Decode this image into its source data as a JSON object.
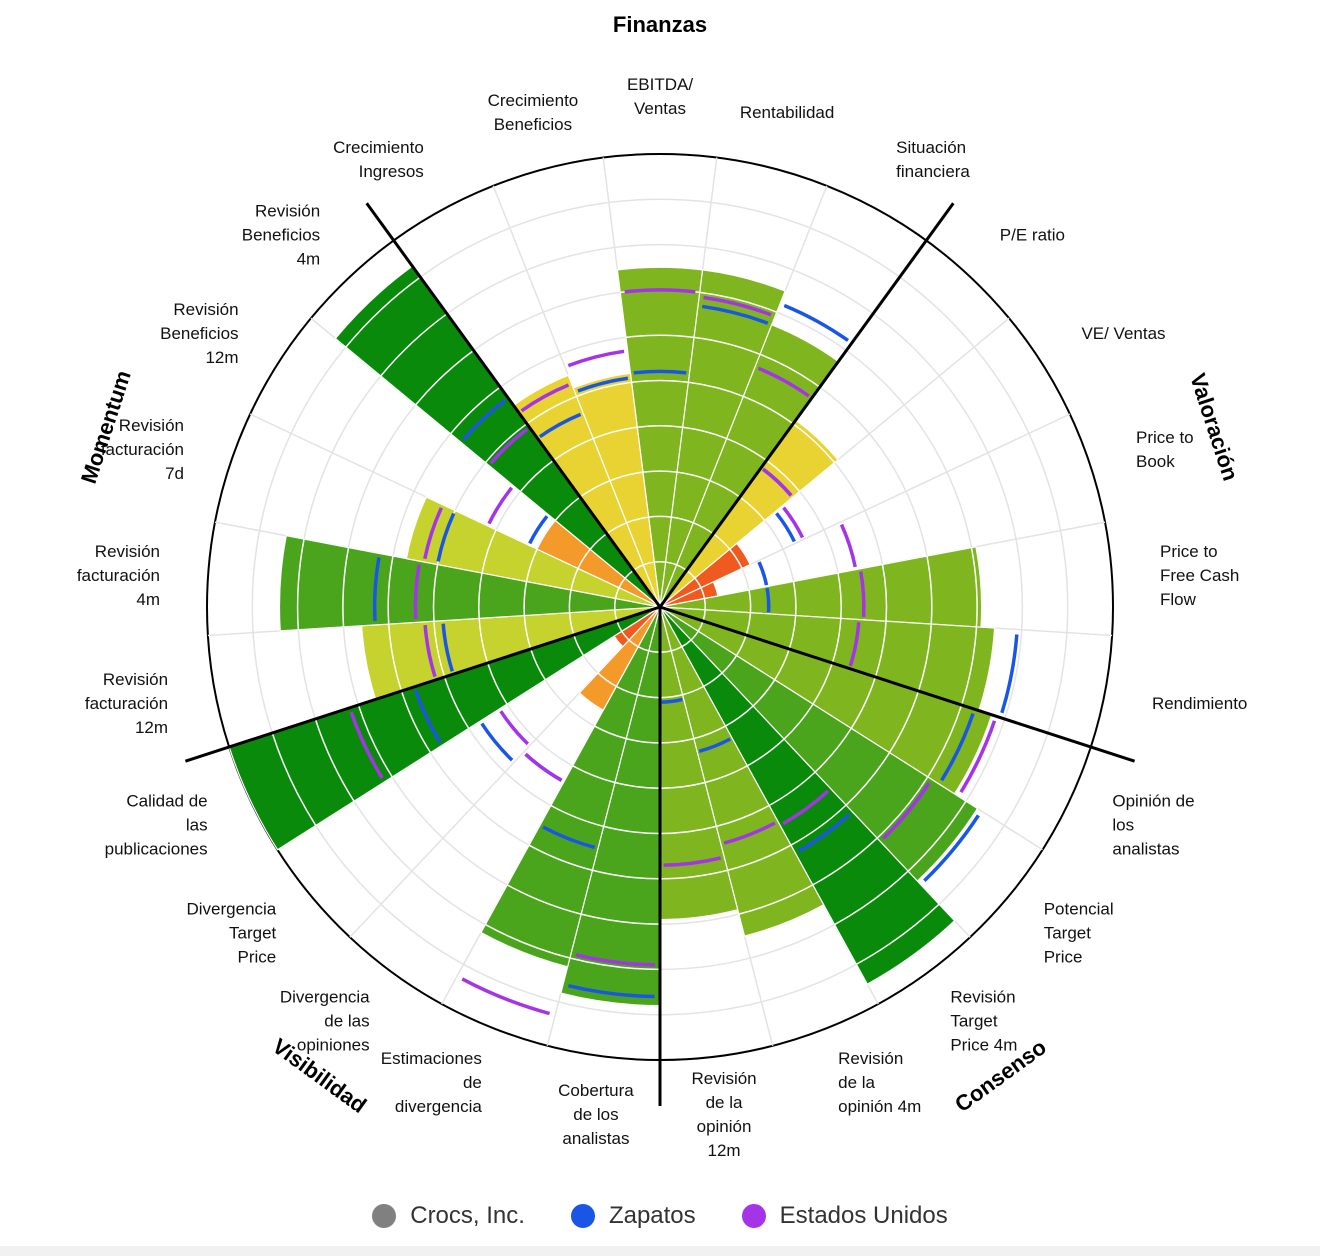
{
  "chart_data": {
    "type": "polar-bar",
    "scale": {
      "min": 0,
      "max": 10,
      "rings": 10
    },
    "colors": {
      "score_scale": [
        "#e8231e",
        "#f05a1e",
        "#f39a2a",
        "#f9bd3a",
        "#e8d333",
        "#c6d22e",
        "#7fb61f",
        "#4ba51c",
        "#0a8a0a"
      ],
      "peer_1": "#1a56e6",
      "peer_2": "#a534e8",
      "grid": "#e3e3e3"
    },
    "groups": [
      {
        "name": "Finanzas"
      },
      {
        "name": "Valoración"
      },
      {
        "name": "Consenso"
      },
      {
        "name": "Visibilidad"
      },
      {
        "name": "Momentum"
      }
    ],
    "categories": [
      "EBITDA/ Ventas",
      "Rentabilidad",
      "Situación financiera",
      "P/E ratio",
      "VE/ Ventas",
      "Price to Book",
      "Price to Free Cash Flow",
      "Rendimiento",
      "Opinión de los analistas",
      "Potencial Target Price",
      "Revisión Target Price 4m",
      "Revisión de la opinión 4m",
      "Revisión de la opinión 12m",
      "Cobertura de los analistas",
      "Estimaciones de divergencia",
      "Divergencia de las opiniones",
      "Divergencia Target Price",
      "Calidad de las publicaciones",
      "Revisión facturación 12m",
      "Revisión facturación 4m",
      "Revisión facturación 7d",
      "Revisión Beneficios 12m",
      "Revisión Beneficios 4m",
      "Crecimiento Ingresos",
      "Crecimiento Beneficios"
    ],
    "axis_labels": [
      [
        "EBITDA/",
        "Ventas"
      ],
      [
        "Rentabilidad"
      ],
      [
        "Situación",
        "financiera"
      ],
      [
        "P/E ratio"
      ],
      [
        "VE/ Ventas"
      ],
      [
        "Price to",
        "Book"
      ],
      [
        "Price to",
        "Free Cash",
        "Flow"
      ],
      [
        "Rendimiento"
      ],
      [
        "Opinión de",
        "los",
        "analistas"
      ],
      [
        "Potencial",
        "Target",
        "Price"
      ],
      [
        "Revisión",
        "Target",
        "Price 4m"
      ],
      [
        "Revisión",
        "de la",
        "opinión 4m"
      ],
      [
        "Revisión",
        "de la",
        "opinión",
        "12m"
      ],
      [
        "Cobertura",
        "de los",
        "analistas"
      ],
      [
        "Estimaciones",
        "de",
        "divergencia"
      ],
      [
        "Divergencia",
        "de las",
        "opiniones"
      ],
      [
        "Divergencia",
        "Target",
        "Price"
      ],
      [
        "Calidad de",
        "las",
        "publicaciones"
      ],
      [
        "Revisión",
        "facturación",
        "12m"
      ],
      [
        "Revisión",
        "facturación",
        "4m"
      ],
      [
        "Revisión",
        "facturación",
        "7d"
      ],
      [
        "Revisión",
        "Beneficios",
        "12m"
      ],
      [
        "Revisión",
        "Beneficios",
        "4m"
      ],
      [
        "Crecimiento",
        "Ingresos"
      ],
      [
        "Crecimiento",
        "Beneficios"
      ]
    ],
    "series": [
      {
        "name": "Crocs, Inc.",
        "legend_color": "#808080",
        "values": [
          7.5,
          7.5,
          6.7,
          5.1,
          2.2,
          1.3,
          7.1,
          7.4,
          7.7,
          8.3,
          9.5,
          7.5,
          6.9,
          8.8,
          8.2,
          2.6,
          1.2,
          10.0,
          6.6,
          8.4,
          5.7,
          3.0,
          9.3,
          5.5,
          5.2
        ]
      },
      {
        "name": "Zapatos",
        "legend_color": "#1a56e6",
        "values": [
          5.2,
          6.7,
          7.2,
          3.8,
          3.3,
          2.4,
          2.4,
          7.9,
          7.3,
          8.4,
          6.2,
          3.3,
          2.1,
          8.6,
          5.5,
          4.4,
          4.7,
          5.7,
          4.8,
          6.3,
          5.0,
          3.2,
          5.7,
          4.6,
          5.1
        ]
      },
      {
        "name": "Estados Unidos",
        "legend_color": "#a534e8",
        "values": [
          7.0,
          6.9,
          5.7,
          3.8,
          3.5,
          4.4,
          4.5,
          4.4,
          7.8,
          7.1,
          5.5,
          5.4,
          5.7,
          7.9,
          9.3,
          4.4,
          4.2,
          7.2,
          5.2,
          5.4,
          5.3,
          4.2,
          4.9,
          5.3,
          5.7
        ]
      }
    ]
  },
  "legend": {
    "items": [
      {
        "label": "Crocs, Inc.",
        "color": "#808080"
      },
      {
        "label": "Zapatos",
        "color": "#1a56e6"
      },
      {
        "label": "Estados Unidos",
        "color": "#a534e8"
      }
    ]
  }
}
